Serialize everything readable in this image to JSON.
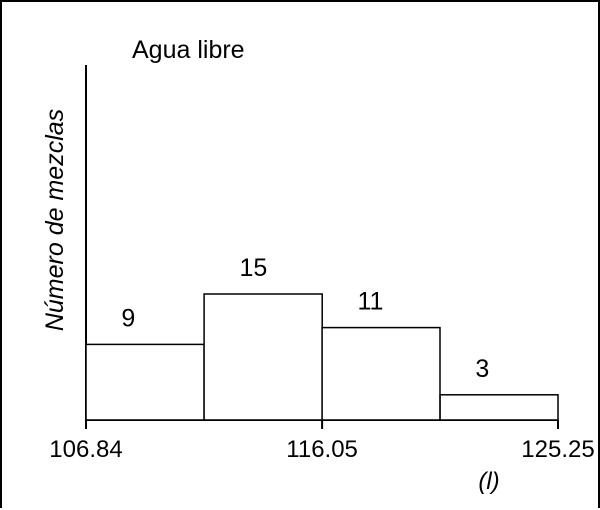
{
  "chart_data": {
    "type": "bar",
    "title": "Agua libre",
    "ylabel": "Número de mezclas",
    "xunit": "(l)",
    "bins": [
      {
        "start": 106.84,
        "end": 111.445,
        "value": 9
      },
      {
        "start": 111.445,
        "end": 116.05,
        "value": 15
      },
      {
        "start": 116.05,
        "end": 120.65,
        "value": 11
      },
      {
        "start": 120.65,
        "end": 125.25,
        "value": 3
      }
    ],
    "xticks": [
      "106.84",
      "116.05",
      "125.25"
    ],
    "xticks_values": [
      106.84,
      116.05,
      125.25
    ],
    "xlim": [
      106.84,
      125.25
    ],
    "ylim": [
      0,
      22
    ],
    "grid": false
  }
}
